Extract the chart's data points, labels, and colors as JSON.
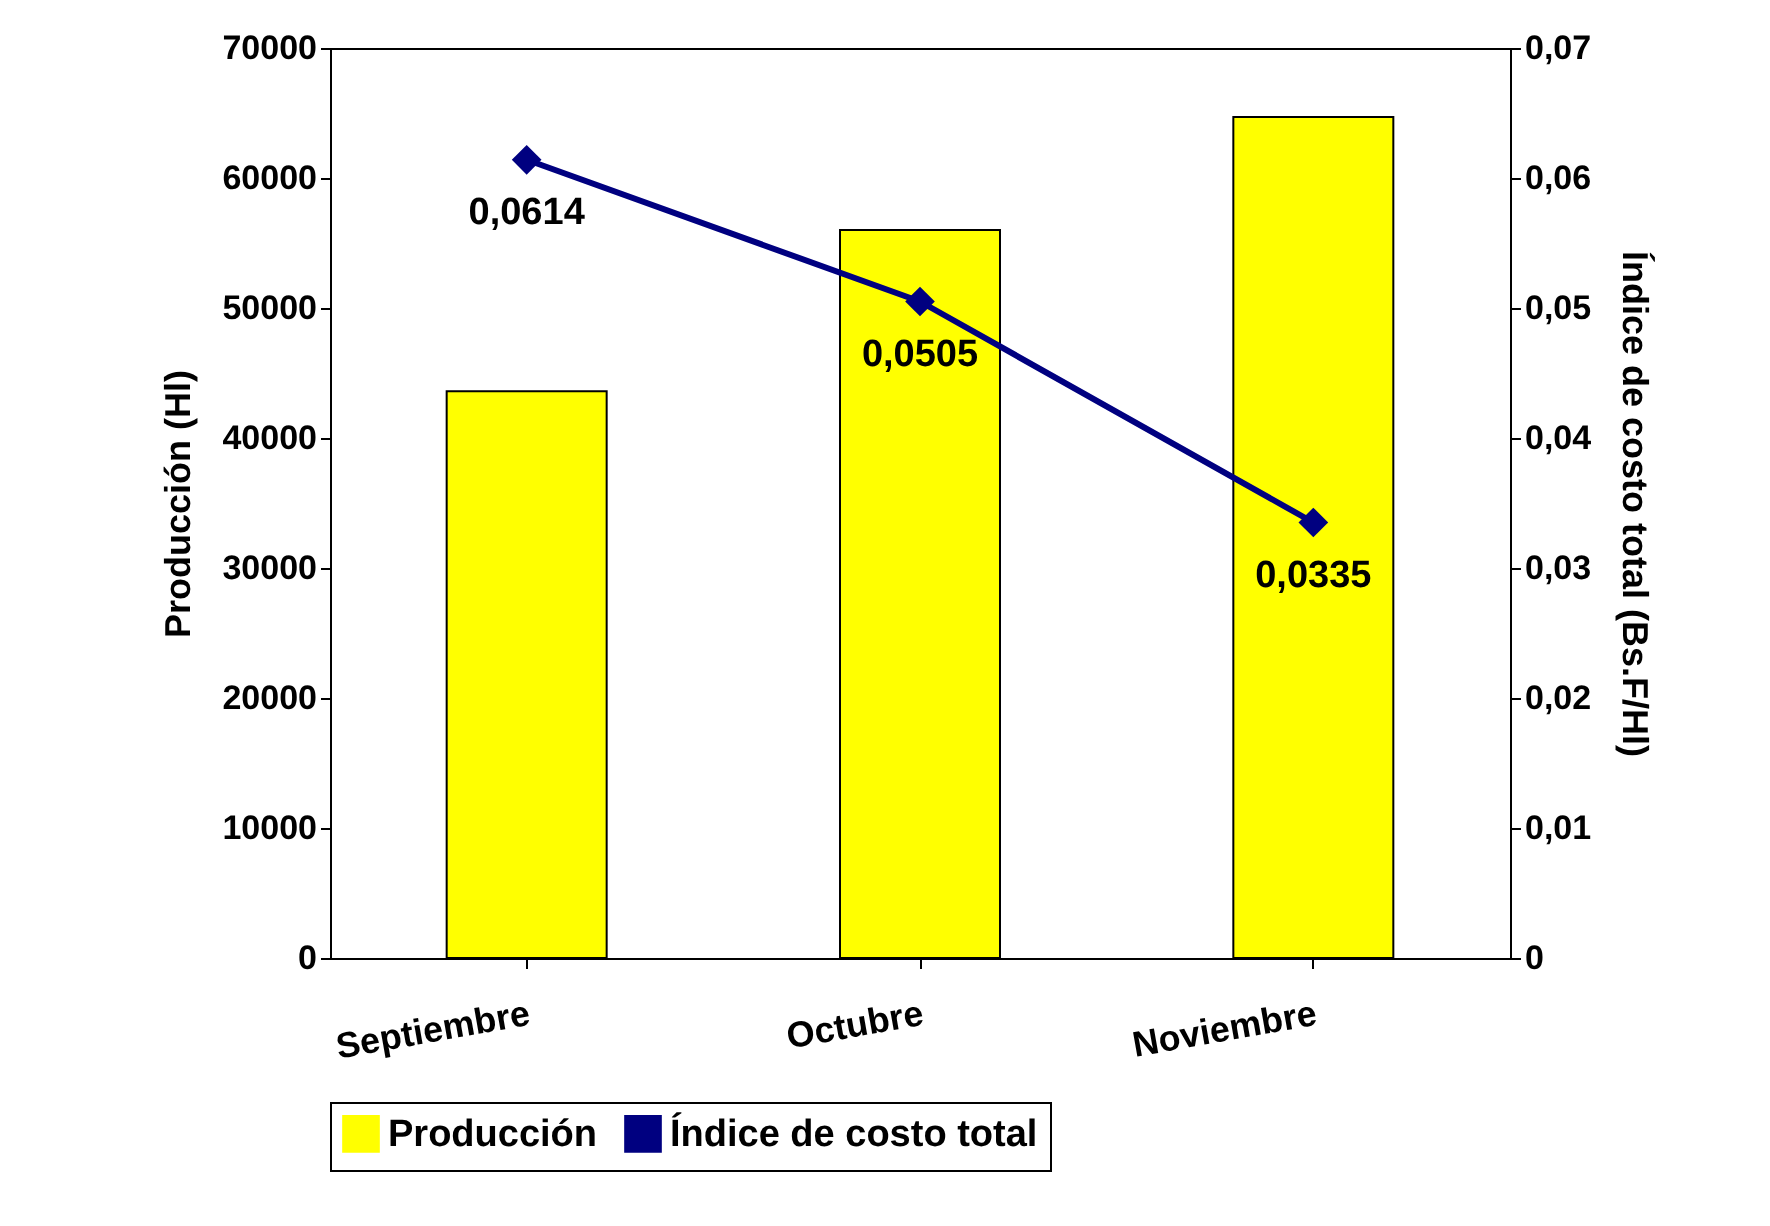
{
  "chart_data": {
    "type": "bar",
    "categories": [
      "Septiembre",
      "Octubre",
      "Noviembre"
    ],
    "ylabel": "Producción (Hl)",
    "y2label": "Índice de costo total  (Bs.F/Hl)",
    "series": [
      {
        "name": "Producción",
        "color": "#ffff00",
        "values": [
          43600,
          56000,
          64700
        ]
      },
      {
        "name": "Índice de costo total",
        "type": "line",
        "axis": "y2",
        "color": "#000080",
        "marker": "diamond",
        "values": [
          0.0614,
          0.0505,
          0.0335
        ],
        "value_labels": [
          "0,0614",
          "0,0505",
          "0,0335"
        ]
      }
    ],
    "ylim": [
      0,
      70000
    ],
    "yticks": [
      0,
      10000,
      20000,
      30000,
      40000,
      50000,
      60000,
      70000
    ],
    "y2lim": [
      0,
      0.07
    ],
    "y2ticks": [
      {
        "value": 0,
        "label": "0"
      },
      {
        "value": 0.01,
        "label": "0,01"
      },
      {
        "value": 0.02,
        "label": "0,02"
      },
      {
        "value": 0.03,
        "label": "0,03"
      },
      {
        "value": 0.04,
        "label": "0,04"
      },
      {
        "value": 0.05,
        "label": "0,05"
      },
      {
        "value": 0.06,
        "label": "0,06"
      },
      {
        "value": 0.07,
        "label": "0,07"
      }
    ],
    "grid": false,
    "legend": "bottom"
  }
}
